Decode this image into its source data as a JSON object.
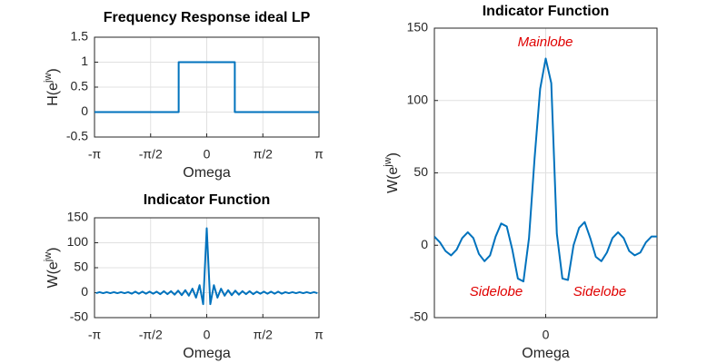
{
  "chart_data": [
    {
      "type": "line",
      "title": "Frequency Response ideal LP",
      "xlabel": "Omega",
      "ylabel_parts": [
        "H(e",
        "jw",
        ")"
      ],
      "x": [
        -3.14159,
        -0.7854,
        -0.7854,
        0.7854,
        0.7854,
        3.14159
      ],
      "series": [
        {
          "color": "#0072bd",
          "values": [
            0,
            0,
            1,
            1,
            0,
            0
          ]
        }
      ],
      "xlim": [
        -3.14159,
        3.14159
      ],
      "xticks": [
        {
          "value": -3.14159,
          "label": "-π"
        },
        {
          "value": -1.5708,
          "label": "-π/2"
        },
        0,
        {
          "value": 1.5708,
          "label": "π/2"
        },
        {
          "value": 3.14159,
          "label": "π"
        }
      ],
      "ylim": [
        -0.5,
        1.5
      ],
      "yticks": [
        -0.5,
        0,
        0.5,
        1,
        1.5
      ],
      "grid": true
    },
    {
      "type": "line",
      "title": "Indicator Function",
      "xlabel": "Omega",
      "ylabel_parts": [
        "W(e",
        "jw",
        ")"
      ],
      "x": [
        -3.1,
        -3.0,
        -2.9,
        -2.8,
        -2.7,
        -2.6,
        -2.5,
        -2.4,
        -2.3,
        -2.2,
        -2.1,
        -2.0,
        -1.9,
        -1.8,
        -1.7,
        -1.6,
        -1.5,
        -1.4,
        -1.3,
        -1.2,
        -1.1,
        -1.0,
        -0.9,
        -0.8,
        -0.7,
        -0.6,
        -0.5,
        -0.4,
        -0.3,
        -0.2,
        -0.1,
        0,
        0.1,
        0.2,
        0.3,
        0.4,
        0.5,
        0.6,
        0.7,
        0.8,
        0.9,
        1.0,
        1.1,
        1.2,
        1.3,
        1.4,
        1.5,
        1.6,
        1.7,
        1.8,
        1.9,
        2.0,
        2.1,
        2.2,
        2.3,
        2.4,
        2.5,
        2.6,
        2.7,
        2.8,
        2.9,
        3.0,
        3.1
      ],
      "series": [
        {
          "color": "#0072bd",
          "values": [
            -1,
            1,
            -1,
            1,
            -1,
            1,
            -1,
            1,
            -1,
            1,
            -2,
            2,
            -2,
            2,
            -2,
            2,
            -2,
            2,
            -3,
            3,
            -3,
            3,
            -4,
            4,
            -5,
            5,
            -6,
            8,
            -10,
            15,
            -23,
            129,
            -23,
            15,
            -10,
            8,
            -6,
            5,
            -5,
            4,
            -4,
            3,
            -3,
            3,
            -3,
            2,
            -2,
            2,
            -2,
            2,
            -2,
            2,
            -2,
            1,
            -1,
            1,
            -1,
            1,
            -1,
            1,
            -1,
            1,
            -1
          ]
        }
      ],
      "xlim": [
        -3.14159,
        3.14159
      ],
      "xticks": [
        {
          "value": -3.14159,
          "label": "-π"
        },
        {
          "value": -1.5708,
          "label": "-π/2"
        },
        0,
        {
          "value": 1.5708,
          "label": "π/2"
        },
        {
          "value": 3.14159,
          "label": "π"
        }
      ],
      "ylim": [
        -50,
        150
      ],
      "yticks": [
        -50,
        0,
        50,
        100,
        150
      ],
      "grid": true
    },
    {
      "type": "line",
      "title": "Indicator Function",
      "xlabel": "Omega",
      "ylabel_parts": [
        "W(e",
        "jw",
        ")"
      ],
      "x": [
        -0.4,
        -0.38,
        -0.36,
        -0.34,
        -0.32,
        -0.3,
        -0.28,
        -0.26,
        -0.24,
        -0.22,
        -0.2,
        -0.18,
        -0.16,
        -0.14,
        -0.12,
        -0.1,
        -0.08,
        -0.06,
        -0.04,
        -0.02,
        0,
        0.02,
        0.04,
        0.06,
        0.08,
        0.1,
        0.12,
        0.14,
        0.16,
        0.18,
        0.2,
        0.22,
        0.24,
        0.26,
        0.28,
        0.3,
        0.32,
        0.34,
        0.36,
        0.38,
        0.4
      ],
      "series": [
        {
          "color": "#0072bd",
          "values": [
            6,
            2,
            -4,
            -7,
            -3,
            5,
            9,
            5,
            -6,
            -11,
            -7,
            6,
            15,
            13,
            -3,
            -23,
            -25,
            5,
            60,
            108,
            129,
            112,
            8,
            -23,
            -24,
            0,
            12,
            16,
            5,
            -8,
            -11,
            -5,
            5,
            9,
            5,
            -4,
            -7,
            -5,
            2,
            6,
            6
          ]
        }
      ],
      "xlim": [
        -0.4,
        0.4
      ],
      "xticks": [
        0
      ],
      "ylim": [
        -50,
        150
      ],
      "yticks": [
        -50,
        0,
        50,
        100,
        150
      ],
      "grid": true,
      "annotations": [
        "Mainlobe",
        "Sidelobe",
        "Sidelobe"
      ],
      "annotation_color": "#e00000"
    }
  ]
}
